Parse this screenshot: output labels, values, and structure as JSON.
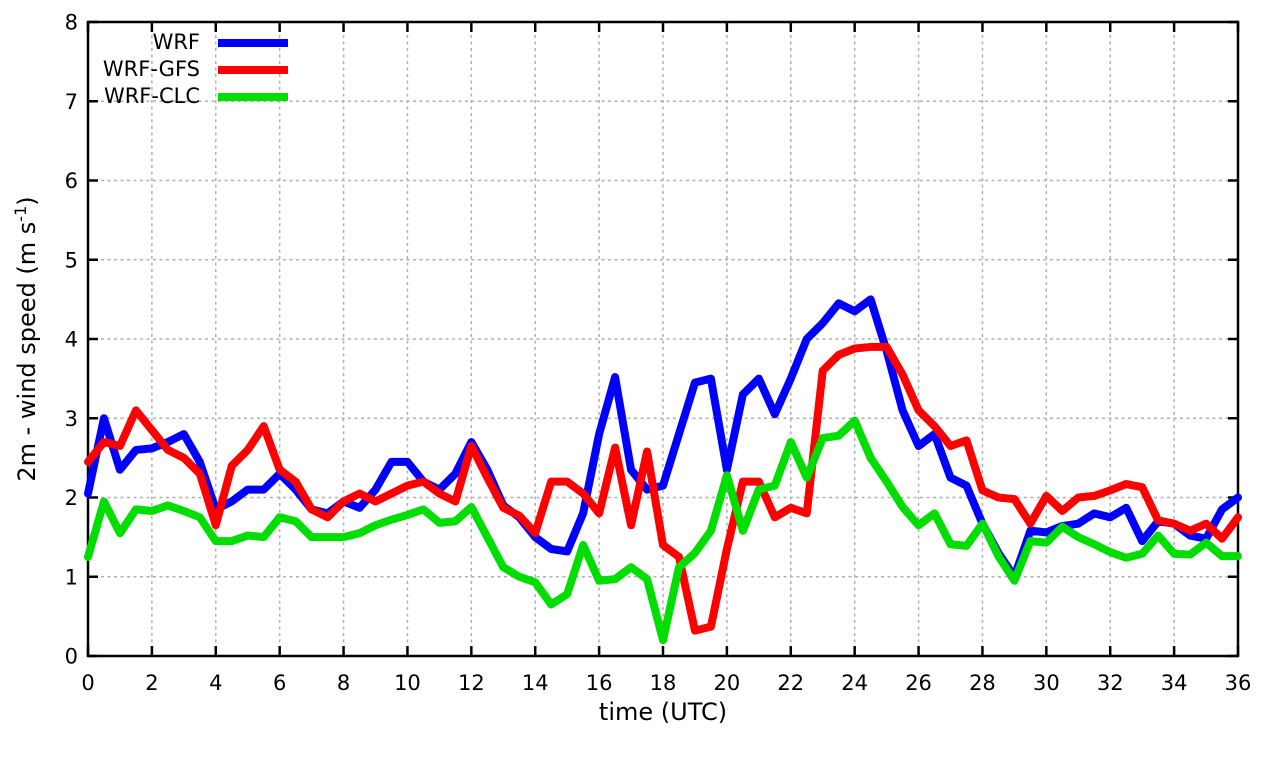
{
  "chart_data": {
    "type": "line",
    "title": "",
    "xlabel": "time (UTC)",
    "ylabel": {
      "main": "2m - wind speed  (m s",
      "sup": "-1",
      "close": ")"
    },
    "xlim": [
      0,
      36
    ],
    "ylim": [
      0,
      8
    ],
    "xticks": [
      0,
      2,
      4,
      6,
      8,
      10,
      12,
      14,
      16,
      18,
      20,
      22,
      24,
      26,
      28,
      30,
      32,
      34,
      36
    ],
    "yticks": [
      0,
      1,
      2,
      3,
      4,
      5,
      6,
      7,
      8
    ],
    "grid": true,
    "grid_color": "#b0b0b0",
    "axis_color": "#000000",
    "legend_position": "top-left-inside",
    "x_start": 0,
    "x_step": 0.5,
    "x": [
      0,
      0.5,
      1,
      1.5,
      2,
      2.5,
      3,
      3.5,
      4,
      4.5,
      5,
      5.5,
      6,
      6.5,
      7,
      7.5,
      8,
      8.5,
      9,
      9.5,
      10,
      10.5,
      11,
      11.5,
      12,
      12.5,
      13,
      13.5,
      14,
      14.5,
      15,
      15.5,
      16,
      16.5,
      17,
      17.5,
      18,
      18.5,
      19,
      19.5,
      20,
      20.5,
      21,
      21.5,
      22,
      22.5,
      23,
      23.5,
      24,
      24.5,
      25,
      25.5,
      26,
      26.5,
      27,
      27.5,
      28,
      28.5,
      29,
      29.5,
      30,
      30.5,
      31,
      31.5,
      32,
      32.5,
      33,
      33.5,
      34,
      34.5,
      35,
      35.5,
      36
    ],
    "series": [
      {
        "name": "WRF",
        "color": "#0000ff",
        "values": [
          2.05,
          3.0,
          2.35,
          2.6,
          2.62,
          2.7,
          2.8,
          2.45,
          1.85,
          1.95,
          2.1,
          2.1,
          2.3,
          2.1,
          1.85,
          1.8,
          1.95,
          1.87,
          2.1,
          2.45,
          2.45,
          2.2,
          2.1,
          2.3,
          2.7,
          2.35,
          1.9,
          1.75,
          1.5,
          1.35,
          1.32,
          1.8,
          2.8,
          3.52,
          2.35,
          2.1,
          2.15,
          2.8,
          3.45,
          3.5,
          2.35,
          3.3,
          3.5,
          3.05,
          3.5,
          4.0,
          4.2,
          4.45,
          4.35,
          4.5,
          3.85,
          3.1,
          2.65,
          2.8,
          2.25,
          2.15,
          1.67,
          1.3,
          1.0,
          1.58,
          1.56,
          1.64,
          1.67,
          1.8,
          1.75,
          1.87,
          1.45,
          1.7,
          1.67,
          1.52,
          1.48,
          1.85,
          2.0
        ]
      },
      {
        "name": "WRF-GFS",
        "color": "#ff0000",
        "values": [
          2.45,
          2.7,
          2.65,
          3.1,
          2.85,
          2.6,
          2.5,
          2.3,
          1.65,
          2.4,
          2.6,
          2.9,
          2.35,
          2.2,
          1.85,
          1.75,
          1.95,
          2.05,
          1.95,
          2.05,
          2.15,
          2.2,
          2.05,
          1.95,
          2.65,
          2.25,
          1.87,
          1.77,
          1.55,
          2.2,
          2.2,
          2.05,
          1.8,
          2.63,
          1.65,
          2.58,
          1.4,
          1.25,
          0.32,
          0.37,
          1.35,
          2.2,
          2.2,
          1.75,
          1.87,
          1.8,
          3.6,
          3.8,
          3.88,
          3.9,
          3.9,
          3.55,
          3.1,
          2.9,
          2.65,
          2.72,
          2.09,
          2.0,
          1.98,
          1.67,
          2.02,
          1.83,
          2.0,
          2.02,
          2.09,
          2.17,
          2.13,
          1.71,
          1.67,
          1.58,
          1.67,
          1.48,
          1.75
        ]
      },
      {
        "name": "WRF-CLC",
        "color": "#00dd00",
        "values": [
          1.25,
          1.95,
          1.55,
          1.85,
          1.83,
          1.9,
          1.83,
          1.75,
          1.45,
          1.45,
          1.52,
          1.5,
          1.75,
          1.7,
          1.5,
          1.5,
          1.5,
          1.55,
          1.65,
          1.72,
          1.78,
          1.85,
          1.68,
          1.7,
          1.88,
          1.5,
          1.12,
          1.0,
          0.93,
          0.65,
          0.78,
          1.4,
          0.95,
          0.97,
          1.12,
          0.97,
          0.2,
          1.12,
          1.3,
          1.58,
          2.28,
          1.58,
          2.1,
          2.15,
          2.7,
          2.25,
          2.75,
          2.78,
          2.97,
          2.5,
          2.2,
          1.88,
          1.65,
          1.8,
          1.41,
          1.39,
          1.67,
          1.26,
          0.95,
          1.45,
          1.43,
          1.63,
          1.5,
          1.41,
          1.31,
          1.24,
          1.29,
          1.52,
          1.29,
          1.28,
          1.43,
          1.26,
          1.26
        ]
      }
    ]
  }
}
